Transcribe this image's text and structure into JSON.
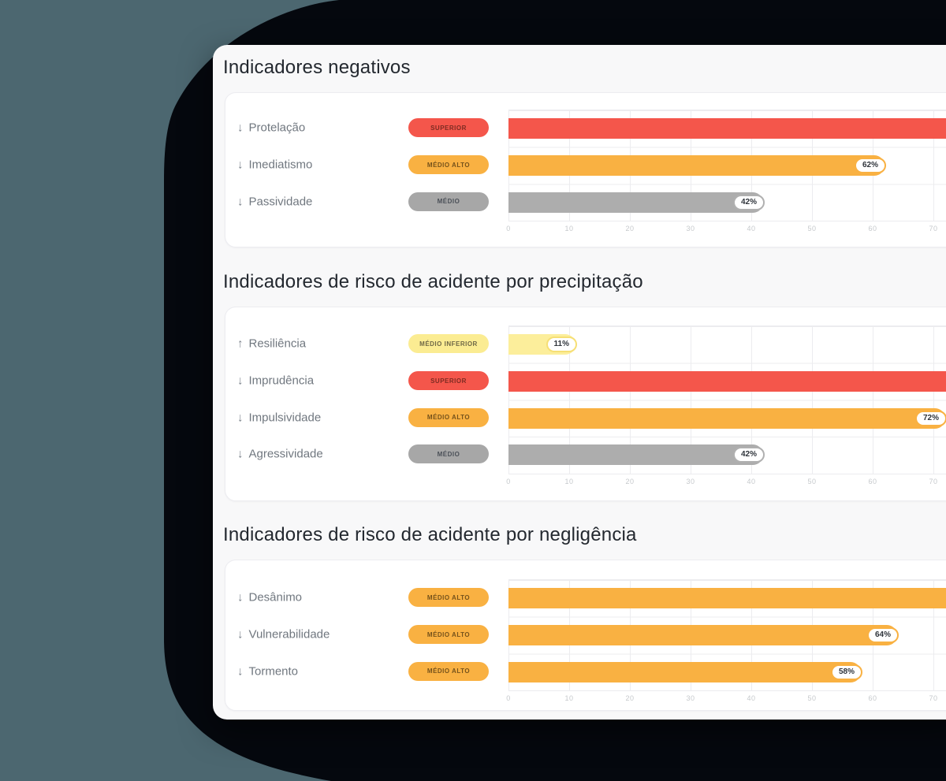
{
  "background": {
    "backdrop_color": "#4c6770",
    "blob_color": "#05080e",
    "panel_color": "#f8f8f9",
    "card_color": "#ffffff"
  },
  "axis": {
    "ticks": [
      "0",
      "10",
      "20",
      "30",
      "40",
      "50",
      "60",
      "70"
    ]
  },
  "levels": {
    "superior": {
      "label": "SUPERIOR",
      "badge_bg": "#f4564b",
      "badge_text": "#7c2b22",
      "bar": "#f4564b",
      "pill_border": "#f4564b"
    },
    "medio_alto": {
      "label": "MÉDIO ALTO",
      "badge_bg": "#f9b142",
      "badge_text": "#75521b",
      "bar": "#f9b142",
      "pill_border": "#f9b142"
    },
    "medio": {
      "label": "MÉDIO",
      "badge_bg": "#a7a7a7",
      "badge_text": "#4b5058",
      "bar": "#adadad",
      "pill_border": "#b0b0b0"
    },
    "medio_inferior": {
      "label": "MÉDIO INFERIOR",
      "badge_bg": "#fbec92",
      "badge_text": "#6e6746",
      "bar": "#fcee9b",
      "pill_border": "#f6df75"
    }
  },
  "sections": [
    {
      "title": "Indicadores negativos",
      "rows": [
        {
          "arrow": "↓",
          "label": "Protelação",
          "level": "superior",
          "value": null,
          "value_label": null,
          "cut_off": true
        },
        {
          "arrow": "↓",
          "label": "Imediatismo",
          "level": "medio_alto",
          "value": 62,
          "value_label": "62%",
          "cut_off": false
        },
        {
          "arrow": "↓",
          "label": "Passividade",
          "level": "medio",
          "value": 42,
          "value_label": "42%",
          "cut_off": false
        }
      ]
    },
    {
      "title": "Indicadores de risco de acidente por precipitação",
      "rows": [
        {
          "arrow": "↑",
          "label": "Resiliência",
          "level": "medio_inferior",
          "value": 11,
          "value_label": "11%",
          "cut_off": false
        },
        {
          "arrow": "↓",
          "label": "Imprudência",
          "level": "superior",
          "value": null,
          "value_label": null,
          "cut_off": true
        },
        {
          "arrow": "↓",
          "label": "Impulsividade",
          "level": "medio_alto",
          "value": 72,
          "value_label": "72%",
          "cut_off": false
        },
        {
          "arrow": "↓",
          "label": "Agressividade",
          "level": "medio",
          "value": 42,
          "value_label": "42%",
          "cut_off": false
        }
      ]
    },
    {
      "title": "Indicadores de risco de acidente por negligência",
      "rows": [
        {
          "arrow": "↓",
          "label": "Desânimo",
          "level": "medio_alto",
          "value": null,
          "value_label": null,
          "cut_off": true
        },
        {
          "arrow": "↓",
          "label": "Vulnerabilidade",
          "level": "medio_alto",
          "value": 64,
          "value_label": "64%",
          "cut_off": false
        },
        {
          "arrow": "↓",
          "label": "Tormento",
          "level": "medio_alto",
          "value": 58,
          "value_label": "58%",
          "cut_off": false
        }
      ]
    }
  ],
  "chart_data": [
    {
      "type": "bar",
      "orientation": "horizontal",
      "title": "Indicadores negativos",
      "categories": [
        "Protelação",
        "Imediatismo",
        "Passividade"
      ],
      "values": [
        null,
        62,
        42
      ],
      "value_labels": [
        null,
        "62%",
        "42%"
      ],
      "badges": [
        "SUPERIOR",
        "MÉDIO ALTO",
        "MÉDIO"
      ],
      "bar_colors": [
        "#f4564b",
        "#f9b142",
        "#adadad"
      ],
      "note_null_values": "bar extends past right crop edge, value label not visible",
      "xlim": [
        0,
        80
      ],
      "x_ticks": [
        0,
        10,
        20,
        30,
        40,
        50,
        60,
        70
      ],
      "grid": true,
      "legend": false
    },
    {
      "type": "bar",
      "orientation": "horizontal",
      "title": "Indicadores de risco de acidente por precipitação",
      "categories": [
        "Resiliência",
        "Imprudência",
        "Impulsividade",
        "Agressividade"
      ],
      "values": [
        11,
        null,
        72,
        42
      ],
      "value_labels": [
        "11%",
        null,
        "72%",
        "42%"
      ],
      "badges": [
        "MÉDIO INFERIOR",
        "SUPERIOR",
        "MÉDIO ALTO",
        "MÉDIO"
      ],
      "bar_colors": [
        "#fcee9b",
        "#f4564b",
        "#f9b142",
        "#adadad"
      ],
      "note_null_values": "bar extends past right crop edge, value label not visible",
      "xlim": [
        0,
        80
      ],
      "x_ticks": [
        0,
        10,
        20,
        30,
        40,
        50,
        60,
        70
      ],
      "grid": true,
      "legend": false
    },
    {
      "type": "bar",
      "orientation": "horizontal",
      "title": "Indicadores de risco de acidente por negligência",
      "categories": [
        "Desânimo",
        "Vulnerabilidade",
        "Tormento"
      ],
      "values": [
        null,
        64,
        58
      ],
      "value_labels": [
        null,
        "64%",
        "58%"
      ],
      "badges": [
        "MÉDIO ALTO",
        "MÉDIO ALTO",
        "MÉDIO ALTO"
      ],
      "bar_colors": [
        "#f9b142",
        "#f9b142",
        "#f9b142"
      ],
      "note_null_values": "bar extends past right crop edge, value label not visible",
      "xlim": [
        0,
        80
      ],
      "x_ticks": [
        0,
        10,
        20,
        30,
        40,
        50,
        60,
        70
      ],
      "grid": true,
      "legend": false
    }
  ]
}
